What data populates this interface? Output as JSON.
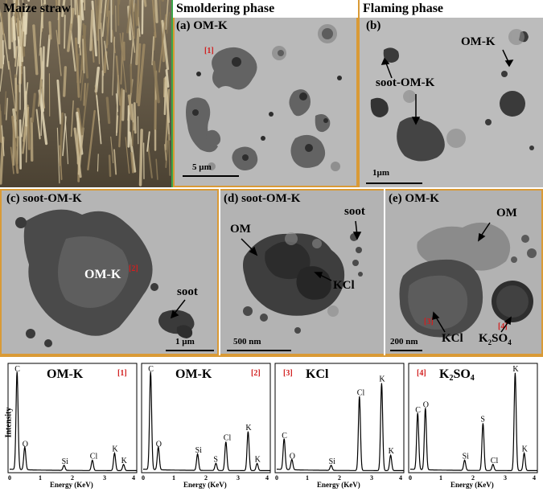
{
  "top": {
    "straw": {
      "title": "Maize straw"
    },
    "smolder": {
      "header": "Smoldering phase",
      "label": "(a) OM-K",
      "marker": "[1]",
      "scale": "5 µm"
    },
    "flaming": {
      "header": "Flaming phase",
      "label": "(b)",
      "om_k": "OM-K",
      "soot_om_k": "soot-OM-K",
      "scale": "1µm"
    }
  },
  "middle": {
    "c": {
      "label": "(c) soot-OM-K",
      "om_k": "OM-K",
      "marker": "[2]",
      "soot": "soot",
      "scale": "1 µm"
    },
    "d": {
      "label": "(d) soot-OM-K",
      "om": "OM",
      "soot": "soot",
      "kcl": "KCl",
      "scale": "500 nm"
    },
    "e": {
      "label": "(e) OM-K",
      "om": "OM",
      "kcl": "KCl",
      "k2so4": "K2SO4",
      "marker3": "[3]",
      "marker4": "[4]",
      "scale": "200 nm"
    }
  },
  "spectra": {
    "ylabel": "Intensity",
    "xlabel": "Energy (KeV)",
    "panels": [
      {
        "title": "OM-K",
        "marker": "[1]",
        "peaks": [
          {
            "el": "C",
            "e": 0.28,
            "h": 0.95
          },
          {
            "el": "O",
            "e": 0.52,
            "h": 0.22
          },
          {
            "el": "Si",
            "e": 1.74,
            "h": 0.05
          },
          {
            "el": "Cl",
            "e": 2.62,
            "h": 0.1
          },
          {
            "el": "K",
            "e": 3.31,
            "h": 0.17
          },
          {
            "el": "K",
            "e": 3.59,
            "h": 0.06
          }
        ]
      },
      {
        "title": "OM-K",
        "marker": "[2]",
        "peaks": [
          {
            "el": "C",
            "e": 0.28,
            "h": 0.95
          },
          {
            "el": "O",
            "e": 0.52,
            "h": 0.22
          },
          {
            "el": "Si",
            "e": 1.74,
            "h": 0.16
          },
          {
            "el": "S",
            "e": 2.31,
            "h": 0.07
          },
          {
            "el": "Cl",
            "e": 2.62,
            "h": 0.28
          },
          {
            "el": "K",
            "e": 3.31,
            "h": 0.38
          },
          {
            "el": "K",
            "e": 3.59,
            "h": 0.07
          }
        ]
      },
      {
        "title": "KCl",
        "marker": "[3]",
        "peaks": [
          {
            "el": "C",
            "e": 0.28,
            "h": 0.3
          },
          {
            "el": "O",
            "e": 0.52,
            "h": 0.1
          },
          {
            "el": "Si",
            "e": 1.74,
            "h": 0.05
          },
          {
            "el": "Cl",
            "e": 2.62,
            "h": 0.72
          },
          {
            "el": "K",
            "e": 3.31,
            "h": 0.85
          },
          {
            "el": "K",
            "e": 3.59,
            "h": 0.15
          }
        ]
      },
      {
        "title": "K2SO4",
        "marker": "[4]",
        "peaks": [
          {
            "el": "C",
            "e": 0.28,
            "h": 0.55
          },
          {
            "el": "O",
            "e": 0.52,
            "h": 0.6
          },
          {
            "el": "Si",
            "e": 1.74,
            "h": 0.1
          },
          {
            "el": "S",
            "e": 2.31,
            "h": 0.46
          },
          {
            "el": "Cl",
            "e": 2.62,
            "h": 0.06
          },
          {
            "el": "K",
            "e": 3.31,
            "h": 0.95
          },
          {
            "el": "K",
            "e": 3.59,
            "h": 0.17
          }
        ]
      }
    ],
    "ticks": [
      "0",
      "1",
      "2",
      "3",
      "4"
    ]
  }
}
